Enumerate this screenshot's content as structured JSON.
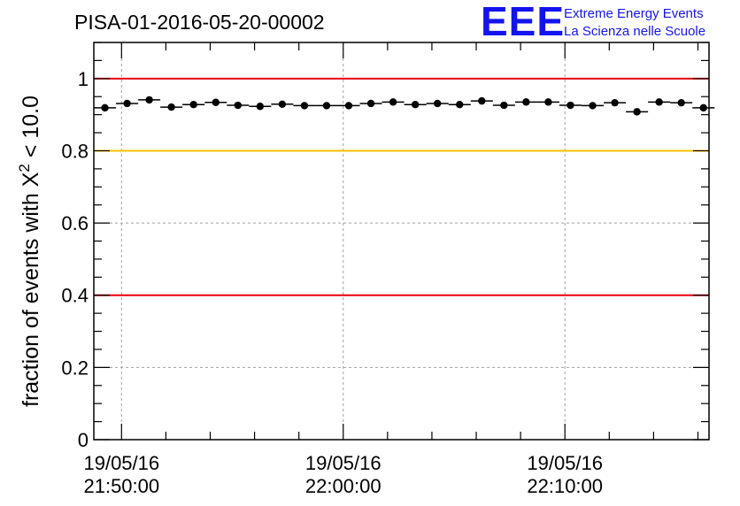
{
  "chart_data": {
    "type": "scatter",
    "title": "PISA-01-2016-05-20-00002",
    "ylabel": "fraction of events with X",
    "ylabel_sup": "2",
    "ylabel_suffix": " < 10.0",
    "xlabel": "",
    "ylim": [
      0,
      1.1
    ],
    "xlim": [
      "21:48:45",
      "22:16:30"
    ],
    "y_ticks": [
      "0",
      "0.2",
      "0.4",
      "0.6",
      "0.8",
      "1"
    ],
    "y_tick_values": [
      0,
      0.2,
      0.4,
      0.6,
      0.8,
      1
    ],
    "x_ticks": [
      {
        "time": "21:50:00",
        "date_label": "19/05/16",
        "time_label": "21:50:00"
      },
      {
        "time": "22:00:00",
        "date_label": "19/05/16",
        "time_label": "22:00:00"
      },
      {
        "time": "22:10:00",
        "date_label": "19/05/16",
        "time_label": "22:10:00"
      }
    ],
    "grid": true,
    "bin_width_minutes": 1,
    "reference_lines": [
      {
        "y": 1.0,
        "color": "#e8000b"
      },
      {
        "y": 0.8,
        "color": "#ffc000"
      },
      {
        "y": 0.4,
        "color": "#e8000b"
      }
    ],
    "series": [
      {
        "marker_color": "#000000",
        "x": [
          "21:49:15",
          "21:50:15",
          "21:51:15",
          "21:52:15",
          "21:53:15",
          "21:54:15",
          "21:55:15",
          "21:56:15",
          "21:57:15",
          "21:58:15",
          "21:59:15",
          "22:00:15",
          "22:01:15",
          "22:02:15",
          "22:03:15",
          "22:04:15",
          "22:05:15",
          "22:06:15",
          "22:07:15",
          "22:08:15",
          "22:09:15",
          "22:10:15",
          "22:11:15",
          "22:12:15",
          "22:13:15",
          "22:14:15",
          "22:15:15",
          "22:16:15"
        ],
        "y": [
          0.919,
          0.931,
          0.941,
          0.921,
          0.928,
          0.934,
          0.926,
          0.923,
          0.929,
          0.925,
          0.925,
          0.925,
          0.931,
          0.935,
          0.928,
          0.931,
          0.928,
          0.938,
          0.926,
          0.935,
          0.935,
          0.926,
          0.925,
          0.933,
          0.908,
          0.935,
          0.933,
          0.919
        ]
      }
    ]
  },
  "logo": {
    "text": "EEE",
    "line1": "Extreme Energy Events",
    "line2": "La Scienza nelle Scuole",
    "color": "#1414f0"
  }
}
